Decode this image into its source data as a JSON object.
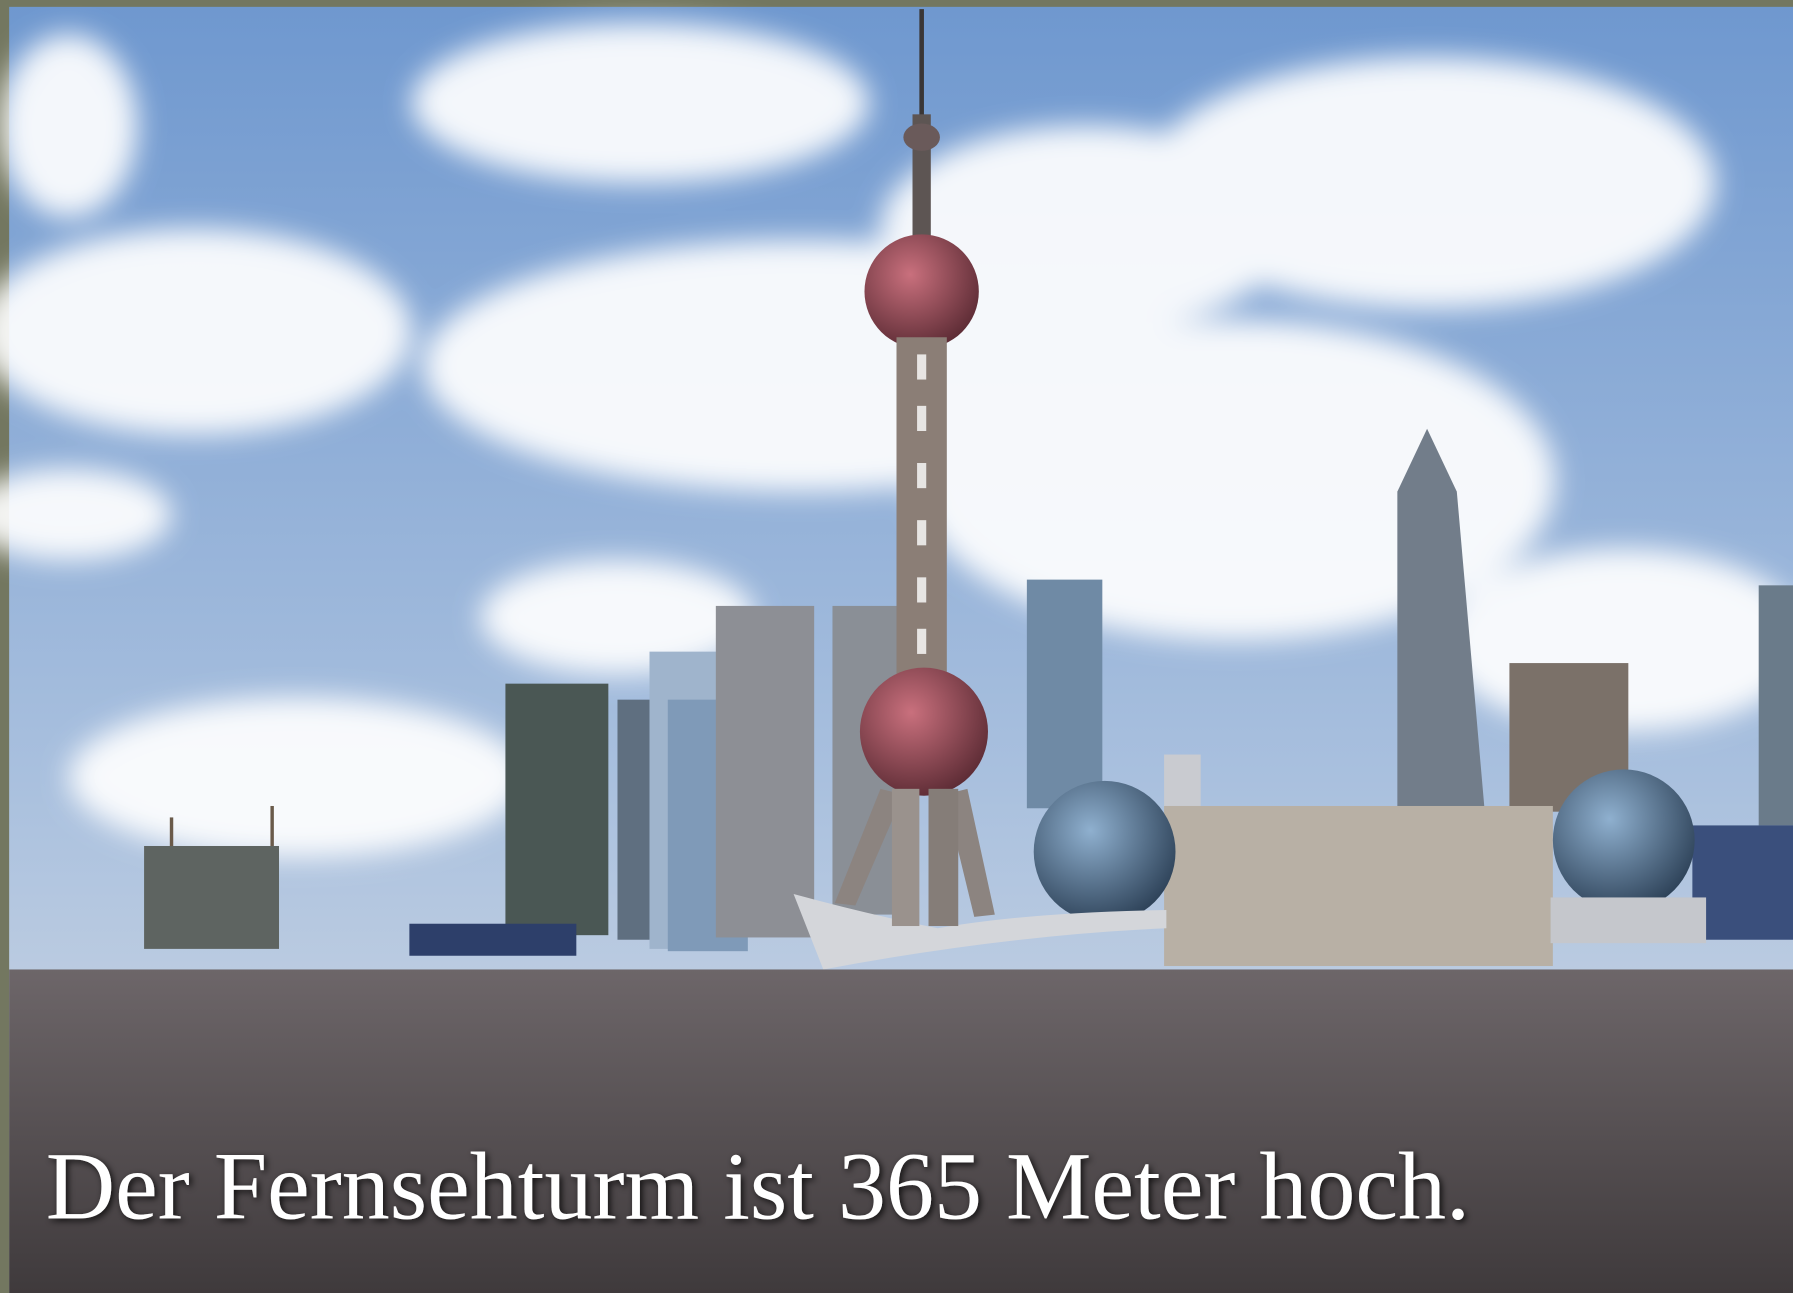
{
  "caption": "Der Fernsehturm ist 365 Meter hoch."
}
